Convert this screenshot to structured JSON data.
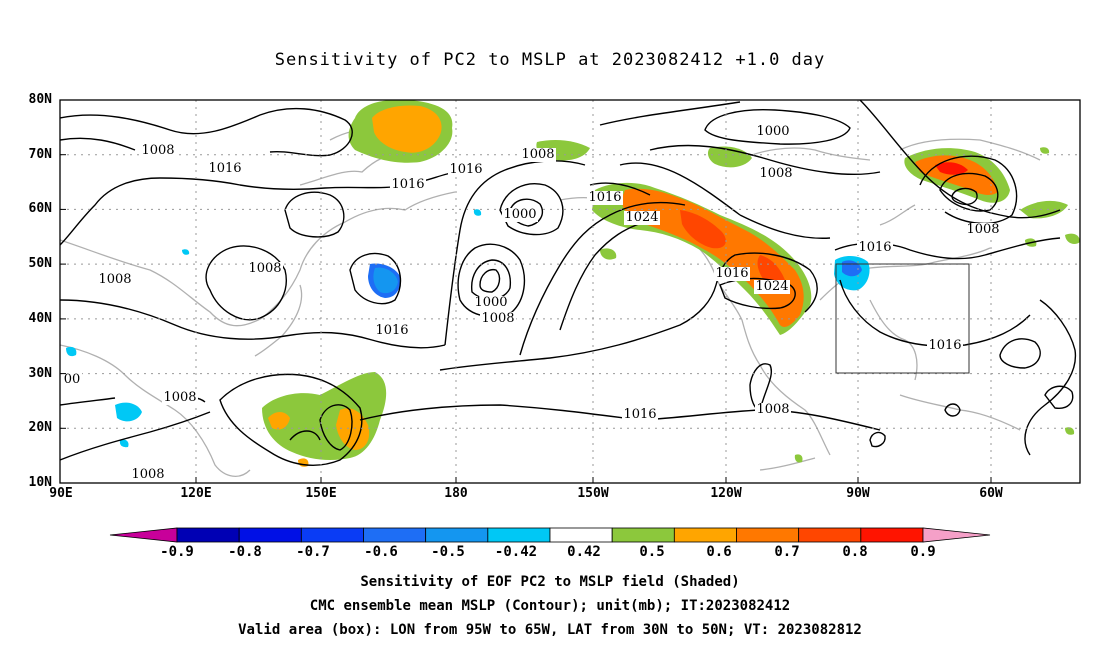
{
  "title": "Sensitivity of PC2 to MSLP at 2023082412 +1.0 day",
  "map": {
    "projection": "cylindrical equidistant",
    "lon_range": [
      "90E",
      "50W"
    ],
    "lat_range": [
      "10N",
      "80N"
    ],
    "lat_labels": [
      "80N",
      "70N",
      "60N",
      "50N",
      "40N",
      "30N",
      "20N",
      "10N"
    ],
    "lon_labels": [
      "90E",
      "120E",
      "150E",
      "180",
      "150W",
      "120W",
      "90W",
      "60W"
    ],
    "gridlines": "dotted",
    "coastline_color": "#aaaaaa",
    "contour_color": "#000000",
    "contour_labels": [
      "1008",
      "1016",
      "1016",
      "1008",
      "1008",
      "1016",
      "1008",
      "1000",
      "1008",
      "1016",
      "1000",
      "1008",
      "1016",
      "1024",
      "1000",
      "1008",
      "1016",
      "1024",
      "1016",
      "1008",
      "1016",
      "1008",
      "1016",
      "1008",
      "00"
    ],
    "valid_box": {
      "lon": [
        "95W",
        "65W"
      ],
      "lat": [
        "30N",
        "50N"
      ]
    }
  },
  "colorbar": {
    "labels": [
      "-0.9",
      "-0.8",
      "-0.7",
      "-0.6",
      "-0.5",
      "-0.42",
      "0.42",
      "0.5",
      "0.6",
      "0.7",
      "0.8",
      "0.9"
    ],
    "colors": [
      "#c8009a",
      "#0000b4",
      "#0010e6",
      "#0a3cf5",
      "#1e6ef5",
      "#1496f0",
      "#00c8f5",
      "#ffffff",
      "#8cc83c",
      "#ffa500",
      "#ff7800",
      "#ff4600",
      "#ff1400",
      "#f5a0c8"
    ]
  },
  "captions": [
    "Sensitivity of EOF PC2 to MSLP field (Shaded)",
    "CMC ensemble mean MSLP (Contour); unit(mb); IT:2023082412",
    "Valid area (box): LON from 95W to 65W, LAT from 30N to 50N; VT: 2023082812"
  ]
}
